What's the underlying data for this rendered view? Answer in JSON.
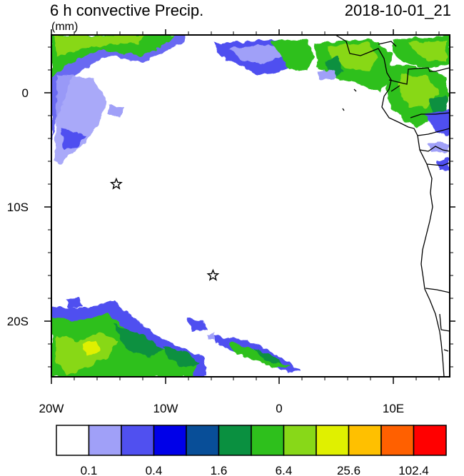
{
  "title": {
    "left": "6 h convective Precip.",
    "right": "2018-10-01_21",
    "units": "(mm)"
  },
  "map": {
    "x_tick_labels": [
      "20W",
      "10W",
      "0",
      "10E"
    ],
    "y_tick_labels": [
      "0",
      "10S",
      "20S"
    ],
    "markers": [
      {
        "name": "star",
        "lon": -14.3,
        "lat": -8.0
      },
      {
        "name": "star",
        "lon": -5.8,
        "lat": -16.0
      }
    ]
  },
  "colorbar": {
    "colors": [
      "#ffffff",
      "#a0a0f8",
      "#5050f0",
      "#0000e8",
      "#084e98",
      "#0a9040",
      "#2ec01c",
      "#88d818",
      "#e0f000",
      "#ffc000",
      "#ff6000",
      "#ff0000"
    ],
    "labels": [
      "0.1",
      "0.4",
      "1.6",
      "6.4",
      "25.6",
      "102.4"
    ]
  },
  "chart_data": {
    "type": "map",
    "title": "6 h convective Precip.",
    "date": "2018-10-01_21",
    "units": "(mm)",
    "lon_range": [
      -20,
      15
    ],
    "lat_range": [
      -24.5,
      5
    ],
    "levels": [
      0.1,
      0.2,
      0.4,
      0.8,
      1.6,
      3.2,
      6.4,
      12.8,
      25.6,
      51.2,
      102.4
    ]
  }
}
